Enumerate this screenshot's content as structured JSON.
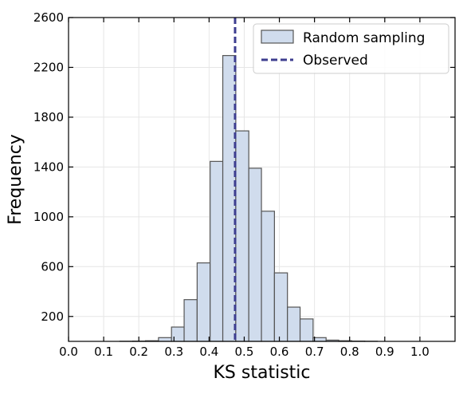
{
  "chart_data": {
    "type": "histogram",
    "xlabel": "KS statistic",
    "ylabel": "Frequency",
    "xlim": [
      0.0,
      1.1
    ],
    "ylim": [
      0,
      2600
    ],
    "xticks": [
      0.0,
      0.1,
      0.2,
      0.3,
      0.4,
      0.5,
      0.6,
      0.7,
      0.8,
      0.9,
      1.0
    ],
    "xtick_labels": [
      "0.0",
      "0.1",
      "0.2",
      "0.3",
      "0.4",
      "0.5",
      "0.6",
      "0.7",
      "0.8",
      "0.9",
      "1.0"
    ],
    "yticks": [
      200,
      600,
      1000,
      1400,
      1800,
      2200,
      2600
    ],
    "ytick_labels": [
      "200",
      "600",
      "1000",
      "1400",
      "1800",
      "2200",
      "2600"
    ],
    "grid": true,
    "legend_position": "top-right",
    "bins": [
      {
        "start": 0.146,
        "end": 0.183,
        "count": 1
      },
      {
        "start": 0.183,
        "end": 0.219,
        "count": 2
      },
      {
        "start": 0.219,
        "end": 0.256,
        "count": 5
      },
      {
        "start": 0.256,
        "end": 0.293,
        "count": 30
      },
      {
        "start": 0.293,
        "end": 0.329,
        "count": 115
      },
      {
        "start": 0.329,
        "end": 0.366,
        "count": 335
      },
      {
        "start": 0.366,
        "end": 0.403,
        "count": 630
      },
      {
        "start": 0.403,
        "end": 0.439,
        "count": 1445
      },
      {
        "start": 0.439,
        "end": 0.476,
        "count": 2295
      },
      {
        "start": 0.476,
        "end": 0.513,
        "count": 1690
      },
      {
        "start": 0.513,
        "end": 0.549,
        "count": 1390
      },
      {
        "start": 0.549,
        "end": 0.586,
        "count": 1045
      },
      {
        "start": 0.586,
        "end": 0.623,
        "count": 550
      },
      {
        "start": 0.623,
        "end": 0.659,
        "count": 275
      },
      {
        "start": 0.659,
        "end": 0.696,
        "count": 180
      },
      {
        "start": 0.696,
        "end": 0.733,
        "count": 30
      },
      {
        "start": 0.733,
        "end": 0.769,
        "count": 10
      },
      {
        "start": 0.769,
        "end": 0.806,
        "count": 5
      },
      {
        "start": 0.806,
        "end": 0.843,
        "count": 2
      },
      {
        "start": 0.843,
        "end": 0.879,
        "count": 1
      }
    ],
    "observed": 0.474,
    "series": [
      {
        "name": "Random sampling",
        "kind": "histogram",
        "fill": "#d0dced",
        "edge": "#555555"
      },
      {
        "name": "Observed",
        "kind": "vline",
        "color": "#3d3d8f",
        "style": "dashed"
      }
    ]
  }
}
